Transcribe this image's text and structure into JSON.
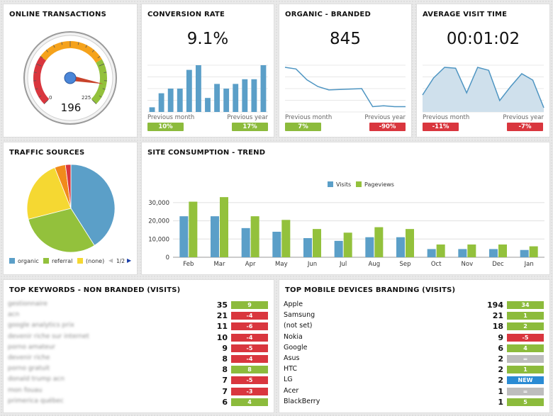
{
  "colors": {
    "blue": "#5b9fc8",
    "green": "#93c13c",
    "red": "#d9363e",
    "yellow": "#f5d832",
    "orange": "#f18a1b"
  },
  "online_transactions": {
    "title": "ONLINE TRANSACTIONS",
    "value": "196",
    "min": "0",
    "max": "225",
    "gauge_value": 196,
    "gauge_max": 225
  },
  "conversion_rate": {
    "title": "CONVERSION RATE",
    "value": "9.1%",
    "prev_month_label": "Previous month",
    "prev_year_label": "Previous year",
    "prev_month_change": "10%",
    "prev_year_change": "17%",
    "bars": [
      1,
      4,
      5,
      5,
      9,
      10,
      3,
      6,
      5,
      6,
      7,
      7,
      10
    ]
  },
  "organic_branded": {
    "title": "ORGANIC - BRANDED",
    "value": "845",
    "prev_month_label": "Previous month",
    "prev_year_label": "Previous year",
    "prev_month_change": "7%",
    "prev_year_change": "-90%",
    "line": [
      10,
      9.6,
      7,
      5.4,
      4.6,
      4.7,
      4.8,
      4.9,
      0.6,
      0.8,
      0.6,
      0.6
    ]
  },
  "average_visit_time": {
    "title": "AVERAGE VISIT TIME",
    "value": "00:01:02",
    "prev_month_label": "Previous month",
    "prev_year_label": "Previous year",
    "prev_month_change": "-11%",
    "prev_year_change": "-7%",
    "area": [
      4,
      8,
      10.5,
      10.3,
      4.5,
      10.5,
      9.8,
      2.7,
      6,
      9,
      7.5,
      1
    ]
  },
  "traffic_sources": {
    "title": "TRAFFIC SOURCES",
    "pager": "1/2",
    "legend": [
      {
        "label": "organic",
        "color": "#5b9fc8"
      },
      {
        "label": "referral",
        "color": "#93c13c"
      },
      {
        "label": "(none)",
        "color": "#f5d832"
      }
    ],
    "slices": [
      {
        "label": "organic",
        "value": 41,
        "color": "#5b9fc8"
      },
      {
        "label": "referral",
        "value": 30,
        "color": "#93c13c"
      },
      {
        "label": "(none)",
        "value": 23,
        "color": "#f5d832"
      },
      {
        "label": "other-orange",
        "value": 4,
        "color": "#f18a1b"
      },
      {
        "label": "other-red",
        "value": 2,
        "color": "#d9363e"
      }
    ]
  },
  "site_consumption": {
    "title": "SITE CONSUMPTION - TREND"
  },
  "chart_data": {
    "type": "bar",
    "title": "",
    "categories": [
      "Feb",
      "Mar",
      "Apr",
      "May",
      "Jun",
      "Jul",
      "Aug",
      "Sep",
      "Oct",
      "Nov",
      "Dec",
      "Jan"
    ],
    "series": [
      {
        "name": "Visits",
        "color": "#5b9fc8",
        "values": [
          22500,
          22500,
          16000,
          14000,
          10500,
          9000,
          11000,
          11000,
          4500,
          4500,
          4500,
          4000
        ]
      },
      {
        "name": "Pageviews",
        "color": "#93c13c",
        "values": [
          30500,
          33000,
          22500,
          20500,
          15500,
          13500,
          16500,
          15500,
          7000,
          7000,
          7000,
          6000
        ]
      }
    ],
    "yticks": [
      "0",
      "10,000",
      "20,000",
      "30,000"
    ],
    "ylim": [
      0,
      35000
    ],
    "legend_position": "top-center",
    "grid": true
  },
  "top_keywords": {
    "title": "TOP KEYWORDS - NON BRANDED (VISITS)",
    "rows": [
      {
        "name": "gestionnaire",
        "value": "35",
        "change": "9",
        "tone": "green"
      },
      {
        "name": "acn",
        "value": "21",
        "change": "-4",
        "tone": "red"
      },
      {
        "name": "google analytics prix",
        "value": "11",
        "change": "-6",
        "tone": "red"
      },
      {
        "name": "devenir riche sur internet",
        "value": "10",
        "change": "-4",
        "tone": "red"
      },
      {
        "name": "porno amateur",
        "value": "9",
        "change": "-5",
        "tone": "red"
      },
      {
        "name": "devenir riche",
        "value": "8",
        "change": "-4",
        "tone": "red"
      },
      {
        "name": "porno gratuit",
        "value": "8",
        "change": "8",
        "tone": "green"
      },
      {
        "name": "donald trump acn",
        "value": "7",
        "change": "-5",
        "tone": "red"
      },
      {
        "name": "mon fouau",
        "value": "7",
        "change": "-3",
        "tone": "red"
      },
      {
        "name": "primerica québec",
        "value": "6",
        "change": "4",
        "tone": "green"
      }
    ]
  },
  "top_mobile": {
    "title": "TOP MOBILE DEVICES BRANDING (VISITS)",
    "rows": [
      {
        "name": "Apple",
        "value": "194",
        "change": "34",
        "tone": "green"
      },
      {
        "name": "Samsung",
        "value": "21",
        "change": "1",
        "tone": "green"
      },
      {
        "name": "(not set)",
        "value": "18",
        "change": "2",
        "tone": "green"
      },
      {
        "name": "Nokia",
        "value": "9",
        "change": "-5",
        "tone": "red"
      },
      {
        "name": "Google",
        "value": "6",
        "change": "4",
        "tone": "green"
      },
      {
        "name": "Asus",
        "value": "2",
        "change": "=",
        "tone": "grey"
      },
      {
        "name": "HTC",
        "value": "2",
        "change": "1",
        "tone": "green"
      },
      {
        "name": "LG",
        "value": "2",
        "change": "NEW",
        "tone": "blue"
      },
      {
        "name": "Acer",
        "value": "1",
        "change": "=",
        "tone": "grey"
      },
      {
        "name": "BlackBerry",
        "value": "1",
        "change": "5",
        "tone": "green"
      }
    ]
  }
}
